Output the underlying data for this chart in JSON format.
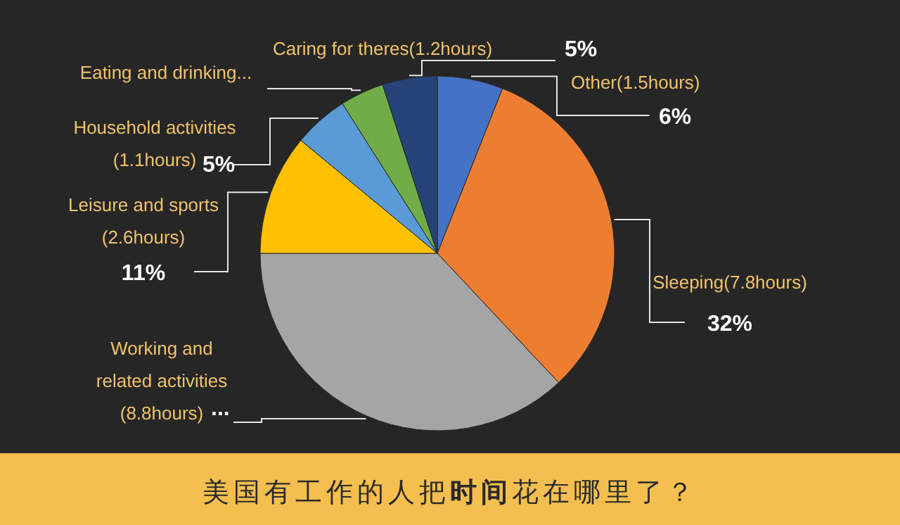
{
  "chart_data": {
    "type": "pie",
    "title": "美国有工作的人把**时间**花在哪里了？",
    "categories": [
      "Other(1.5hours)",
      "Sleeping(7.8hours)",
      "Working and related activities (8.8hours)",
      "Leisure and sports (2.6hours)",
      "Household activities (1.1hours)",
      "Eating and drinking...",
      "Caring for theres(1.2hours)"
    ],
    "values": [
      6,
      32,
      37,
      11,
      5,
      4,
      5
    ],
    "colors": [
      "#4472c4",
      "#ed7d31",
      "#a5a5a5",
      "#ffc000",
      "#5b9bd5",
      "#70ad47",
      "#264478"
    ],
    "value_labels": [
      "6%",
      "32%",
      "...",
      "11%",
      "5%",
      null,
      "5%"
    ]
  }
}
